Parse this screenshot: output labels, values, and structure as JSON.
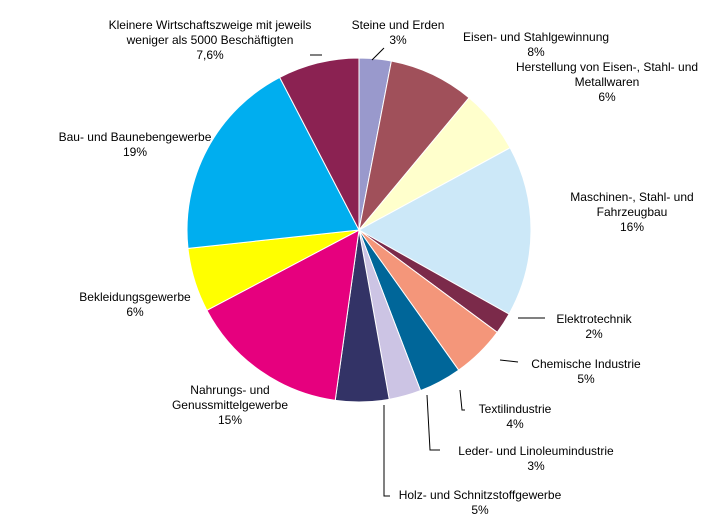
{
  "chart_data": {
    "type": "pie",
    "categories": [
      "Steine und Erden",
      "Eisen- und Stahlgewinnung",
      "Herstellung von Eisen-, Stahl- und Metallwaren",
      "Maschinen-, Stahl- und Fahrzeugbau",
      "Elektrotechnik",
      "Chemische Industrie",
      "Textilindustrie",
      "Leder- und Linoleumindustrie",
      "Holz- und Schnitzstoffgewerbe",
      "Nahrungs- und Genussmittelgewerbe",
      "Bekleidungsgewerbe",
      "Bau- und Baunebengewerbe",
      "Kleinere Wirtschaftszweige mit jeweils weniger als 5000 Beschäftigten"
    ],
    "values": [
      3,
      8,
      6,
      16,
      2,
      5,
      4,
      3,
      5,
      15,
      6,
      19,
      7.6
    ],
    "value_labels": [
      "3%",
      "8%",
      "6%",
      "16%",
      "2%",
      "5%",
      "4%",
      "3%",
      "5%",
      "15%",
      "6%",
      "19%",
      "7,6%"
    ],
    "colors": [
      "#9999cc",
      "#a0505a",
      "#ffffcc",
      "#cce8f8",
      "#7b2a4a",
      "#f4967a",
      "#006699",
      "#ccc4e4",
      "#333366",
      "#e6007e",
      "#ffff00",
      "#00aeef",
      "#8b2252"
    ]
  }
}
